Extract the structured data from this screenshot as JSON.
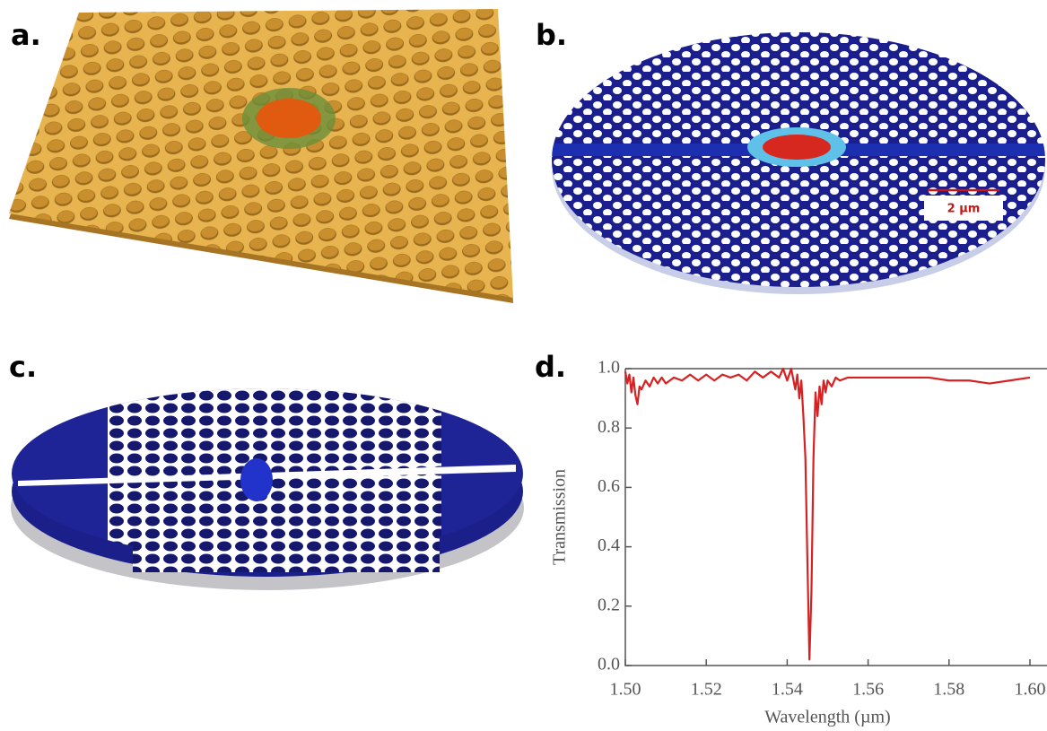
{
  "panels": [
    {
      "label": "a."
    },
    {
      "label": "b."
    },
    {
      "label": "c."
    },
    {
      "label": "d."
    }
  ],
  "scale_bar": "2 µm",
  "chart_data": {
    "type": "line",
    "xlabel": "Wavelength (µm)",
    "ylabel": "Transmission",
    "x": [
      1.5,
      1.5005,
      1.501,
      1.5015,
      1.502,
      1.5025,
      1.503,
      1.5035,
      1.504,
      1.505,
      1.506,
      1.507,
      1.508,
      1.509,
      1.51,
      1.512,
      1.514,
      1.516,
      1.518,
      1.52,
      1.522,
      1.524,
      1.526,
      1.528,
      1.53,
      1.532,
      1.534,
      1.536,
      1.538,
      1.539,
      1.54,
      1.541,
      1.542,
      1.5425,
      1.543,
      1.5435,
      1.544,
      1.5445,
      1.545,
      1.5455,
      1.546,
      1.5465,
      1.547,
      1.5475,
      1.548,
      1.5485,
      1.549,
      1.5495,
      1.55,
      1.551,
      1.552,
      1.553,
      1.555,
      1.56,
      1.565,
      1.57,
      1.575,
      1.58,
      1.585,
      1.59,
      1.595,
      1.6
    ],
    "series": [
      {
        "color": "#d62222",
        "values": [
          0.99,
          0.95,
          0.98,
          0.92,
          0.97,
          0.91,
          0.88,
          0.94,
          0.93,
          0.96,
          0.94,
          0.97,
          0.95,
          0.97,
          0.95,
          0.97,
          0.96,
          0.98,
          0.96,
          0.98,
          0.96,
          0.98,
          0.97,
          0.98,
          0.96,
          0.99,
          0.97,
          0.99,
          0.97,
          1.0,
          0.96,
          1.0,
          0.93,
          0.98,
          0.9,
          0.96,
          0.84,
          0.7,
          0.35,
          0.02,
          0.25,
          0.7,
          0.92,
          0.84,
          0.94,
          0.88,
          0.96,
          0.92,
          0.96,
          0.94,
          0.97,
          0.96,
          0.97,
          0.97,
          0.97,
          0.97,
          0.97,
          0.96,
          0.96,
          0.95,
          0.96,
          0.97
        ]
      }
    ],
    "xlim": [
      1.5,
      1.6
    ],
    "xticks": [
      {
        "value": 1.5,
        "label": "1.50"
      },
      {
        "value": 1.52,
        "label": "1.52"
      },
      {
        "value": 1.54,
        "label": "1.54"
      },
      {
        "value": 1.56,
        "label": "1.56"
      },
      {
        "value": 1.58,
        "label": "1.58"
      },
      {
        "value": 1.6,
        "label": "1.60"
      }
    ],
    "ylim": [
      0,
      1
    ],
    "yticks": [
      {
        "value": 0,
        "label": "0.0"
      },
      {
        "value": 0.2,
        "label": "0.2"
      },
      {
        "value": 0.4,
        "label": "0.4"
      },
      {
        "value": 0.6,
        "label": "0.6"
      },
      {
        "value": 0.8,
        "label": "0.8"
      },
      {
        "value": 1,
        "label": "1.0"
      }
    ]
  }
}
